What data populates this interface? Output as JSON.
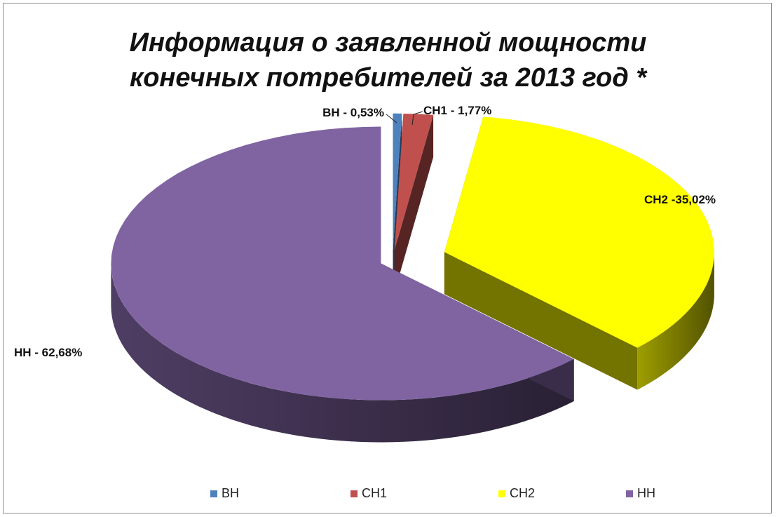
{
  "chart_data": {
    "type": "pie",
    "title": "Информация о заявленной мощности конечных потребителей за 2013 год *",
    "title_lines": [
      "Информация о заявленной мощности",
      "конечных потребителей за 2013 год  *"
    ],
    "categories": [
      "ВН",
      "СН1",
      "СН2",
      "НН"
    ],
    "values": [
      0.53,
      1.77,
      35.02,
      62.68
    ],
    "data_labels": [
      "ВН - 0,53%",
      "СН1 - 1,77%",
      "СН2 -35,02%",
      "НН - 62,68%"
    ],
    "colors": [
      "#4f81bd",
      "#c0504d",
      "#ffff00",
      "#8064a2"
    ],
    "legend": [
      "ВН",
      "СН1",
      "СН2",
      "НН"
    ],
    "legend_position": "bottom",
    "style": "3d-exploded"
  }
}
